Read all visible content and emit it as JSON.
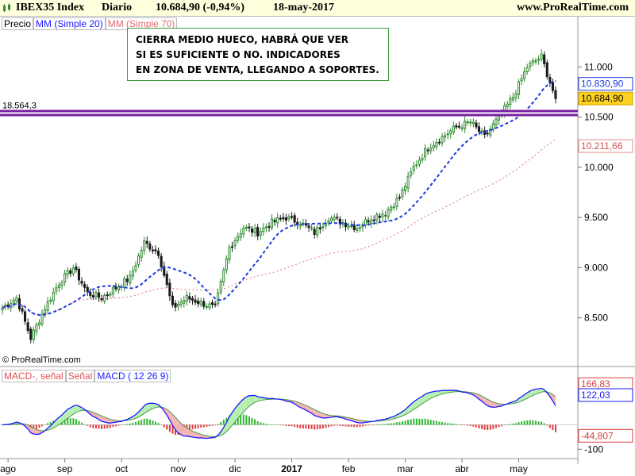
{
  "header": {
    "instrument": "IBEX35 Index",
    "period": "Diario",
    "quote": "10.684,90 (-0,94%)",
    "date": "18-may-2017",
    "site": "www.ProRealTime.com"
  },
  "price_panel": {
    "tags": {
      "price": "Precio",
      "ma20": "MM (Simple 20)",
      "ma70": "MM (Simple 70)"
    },
    "annotation": [
      "CIERRA MEDIO HUECO, HABRÁ QUE VER",
      "SI ES SUFICIENTE O NO. INDICADORES",
      "EN ZONA DE VENTA, LLEGANDO A SOPORTES."
    ],
    "level_label": "18.564,3",
    "copyright": "© ProRealTime.com",
    "y_ticks": [
      "11.000",
      "10.500",
      "10.000",
      "9.500",
      "9.000",
      "8.500"
    ],
    "tick_values": [
      11000,
      10500,
      10000,
      9500,
      9000,
      8500
    ],
    "last_price_label": "10.684,90",
    "ma20_label": "10.830,90",
    "ma70_label": "10.211,66",
    "ylim": [
      8150,
      11350
    ]
  },
  "macd_panel": {
    "tags": {
      "hist": "MACD-, señal",
      "signal": "Señal",
      "macd": "MACD ( 12 26 9)"
    },
    "y_tick": "-100",
    "signal_label": "166,83",
    "macd_label": "122,03",
    "hist_label": "-44,807",
    "ylim": [
      -125,
      200
    ]
  },
  "x_axis": {
    "labels": [
      "ago",
      "sep",
      "oct",
      "nov",
      "dic",
      "2017",
      "feb",
      "mar",
      "abr",
      "may"
    ]
  },
  "colors": {
    "header_bg": "#ffffdd",
    "up_candle": "#2e8b2e",
    "down_candle": "#1a1a1a",
    "ma20": "#1a3adc",
    "ma70": "#e88a8a",
    "support_line": "#7a1fa2",
    "last_price_bg": "#ffd21f",
    "macd_line": "#1a1aff",
    "signal_line": "#4a9a4a",
    "hist_up": "#2fb52f",
    "hist_down": "#e03b3b",
    "fill_up": "#b7efb0",
    "fill_down": "#f6b5b5"
  },
  "chart_data": {
    "type": "candlestick",
    "title": "IBEX35 Index Diario",
    "x_range": [
      "ago 2016",
      "may 2017"
    ],
    "key_levels": {
      "support": 10540,
      "last_close": 10684.9,
      "ma20": 10830.9,
      "ma70": 10211.66
    },
    "approx_closes_monthly": {
      "ago": [
        8600,
        8700,
        8300,
        8600
      ],
      "sep": [
        8850,
        9000,
        8750,
        8700
      ],
      "oct": [
        8800,
        8900,
        9250,
        9150
      ],
      "nov": [
        8600,
        8700,
        8650,
        8600
      ],
      "dic": [
        9200,
        9400,
        9350,
        9450
      ],
      "2017": [
        9500,
        9450,
        9350,
        9500
      ],
      "feb": [
        9450,
        9400,
        9500,
        9550
      ],
      "mar": [
        9700,
        10000,
        10200,
        10300
      ],
      "abr": [
        10400,
        10450,
        10300,
        10500
      ],
      "may": [
        10700,
        11000,
        11100,
        10685
      ]
    },
    "macd": {
      "signal": 166.83,
      "macd": 122.03,
      "hist": -44.807,
      "ylim": [
        -125,
        200
      ]
    }
  }
}
